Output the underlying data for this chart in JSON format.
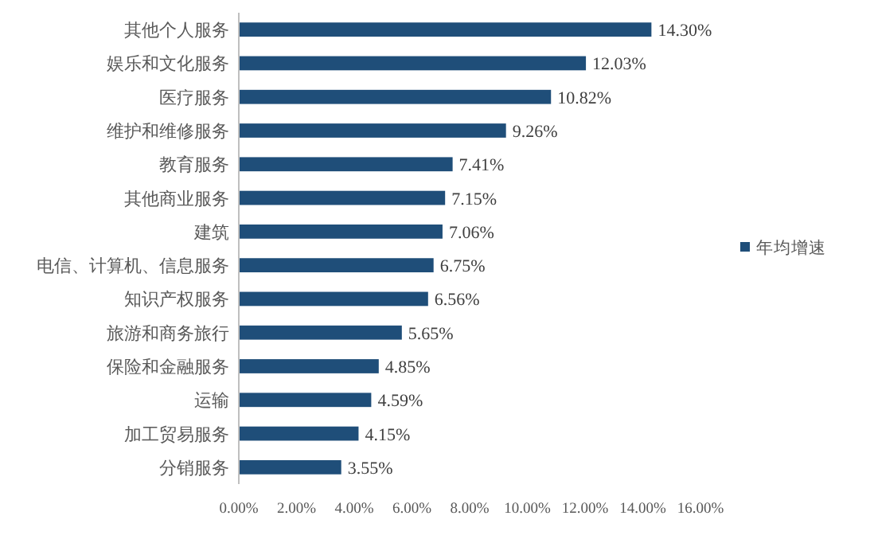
{
  "chart_data": {
    "type": "bar",
    "orientation": "horizontal",
    "categories": [
      "其他个人服务",
      "娱乐和文化服务",
      "医疗服务",
      "维护和维修服务",
      "教育服务",
      "其他商业服务",
      "建筑",
      "电信、计算机、信息服务",
      "知识产权服务",
      "旅游和商务旅行",
      "保险和金融服务",
      "运输",
      "加工贸易服务",
      "分销服务"
    ],
    "series": [
      {
        "name": "年均增速",
        "color": "#1f4e79",
        "values": [
          14.3,
          12.03,
          10.82,
          9.26,
          7.41,
          7.15,
          7.06,
          6.75,
          6.56,
          5.65,
          4.85,
          4.59,
          4.15,
          3.55
        ],
        "value_labels": [
          "14.30%",
          "12.03%",
          "10.82%",
          "9.26%",
          "7.41%",
          "7.15%",
          "7.06%",
          "6.75%",
          "6.56%",
          "5.65%",
          "4.85%",
          "4.59%",
          "4.15%",
          "3.55%"
        ]
      }
    ],
    "xlim": [
      0,
      16
    ],
    "xticks": [
      {
        "value": 0,
        "label": "0.00%"
      },
      {
        "value": 2,
        "label": "2.00%"
      },
      {
        "value": 4,
        "label": "4.00%"
      },
      {
        "value": 6,
        "label": "6.00%"
      },
      {
        "value": 8,
        "label": "8.00%"
      },
      {
        "value": 10,
        "label": "10.00%"
      },
      {
        "value": 12,
        "label": "12.00%"
      },
      {
        "value": 14,
        "label": "14.00%"
      },
      {
        "value": 16,
        "label": "16.00%"
      }
    ],
    "legend": "right"
  }
}
